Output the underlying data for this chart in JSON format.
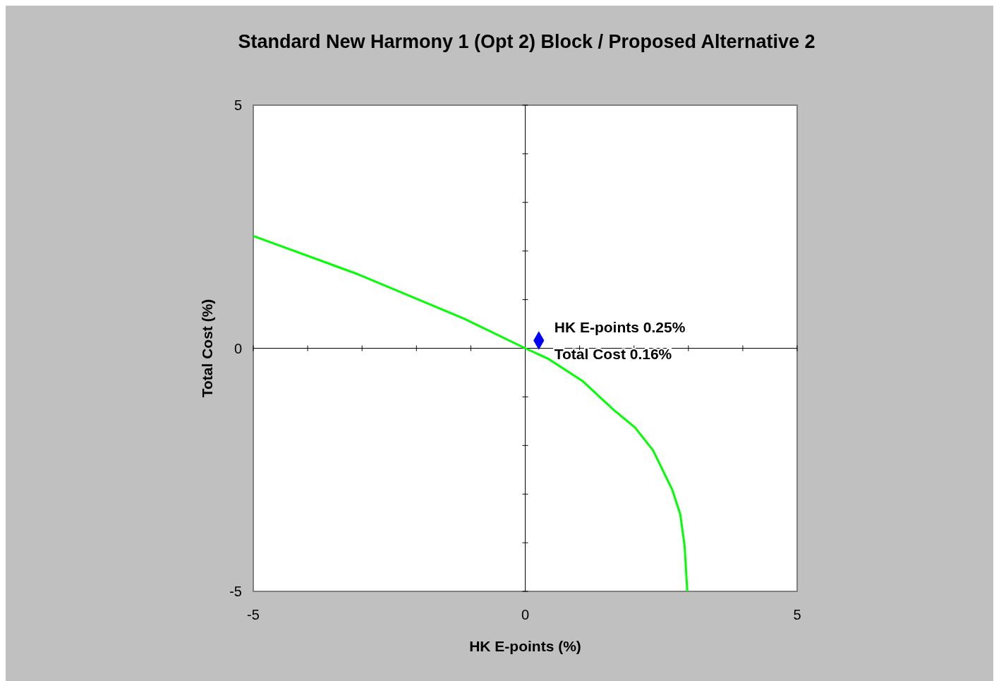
{
  "chart_data": {
    "type": "line",
    "title": "Standard New Harmony 1 (Opt 2) Block / Proposed Alternative 2",
    "xlabel": "HK E-points (%)",
    "ylabel": "Total Cost (%)",
    "xlim": [
      -5,
      5
    ],
    "ylim": [
      -5,
      5
    ],
    "xticks": [
      -5,
      {
        "value": -4,
        "label": null
      },
      {
        "value": -3,
        "label": null
      },
      {
        "value": -2,
        "label": null
      },
      {
        "value": -1,
        "label": null
      },
      0,
      {
        "value": 1,
        "label": null
      },
      {
        "value": 2,
        "label": null
      },
      {
        "value": 3,
        "label": null
      },
      {
        "value": 4,
        "label": null
      },
      5
    ],
    "yticks": [
      -5,
      {
        "value": -4,
        "label": null
      },
      {
        "value": -3,
        "label": null
      },
      {
        "value": -2,
        "label": null
      },
      {
        "value": -1,
        "label": null
      },
      0,
      {
        "value": 1,
        "label": null
      },
      {
        "value": 2,
        "label": null
      },
      {
        "value": 3,
        "label": null
      },
      {
        "value": 4,
        "label": null
      },
      5
    ],
    "series": [
      {
        "color": "#00ff00",
        "marker": "none",
        "x": [
          -5,
          -3.07,
          -1.13,
          0,
          0.43,
          1.05,
          1.62,
          2.02,
          2.35,
          2.7,
          2.85,
          2.93,
          2.98
        ],
        "values": [
          2.31,
          1.52,
          0.61,
          0,
          -0.22,
          -0.67,
          -1.26,
          -1.63,
          -2.1,
          -2.9,
          -3.41,
          -4.06,
          -5
        ]
      },
      {
        "type": "scatter",
        "color": "#0000ff",
        "marker": "diamond",
        "x": [
          0.25
        ],
        "values": [
          0.16
        ]
      }
    ],
    "annotations": [
      {
        "text": "HK E-points 0.25%",
        "x": 0.25,
        "y": 0.16
      },
      {
        "text": "Total Cost 0.16%",
        "x": 0.25,
        "y": 0.16
      }
    ]
  }
}
